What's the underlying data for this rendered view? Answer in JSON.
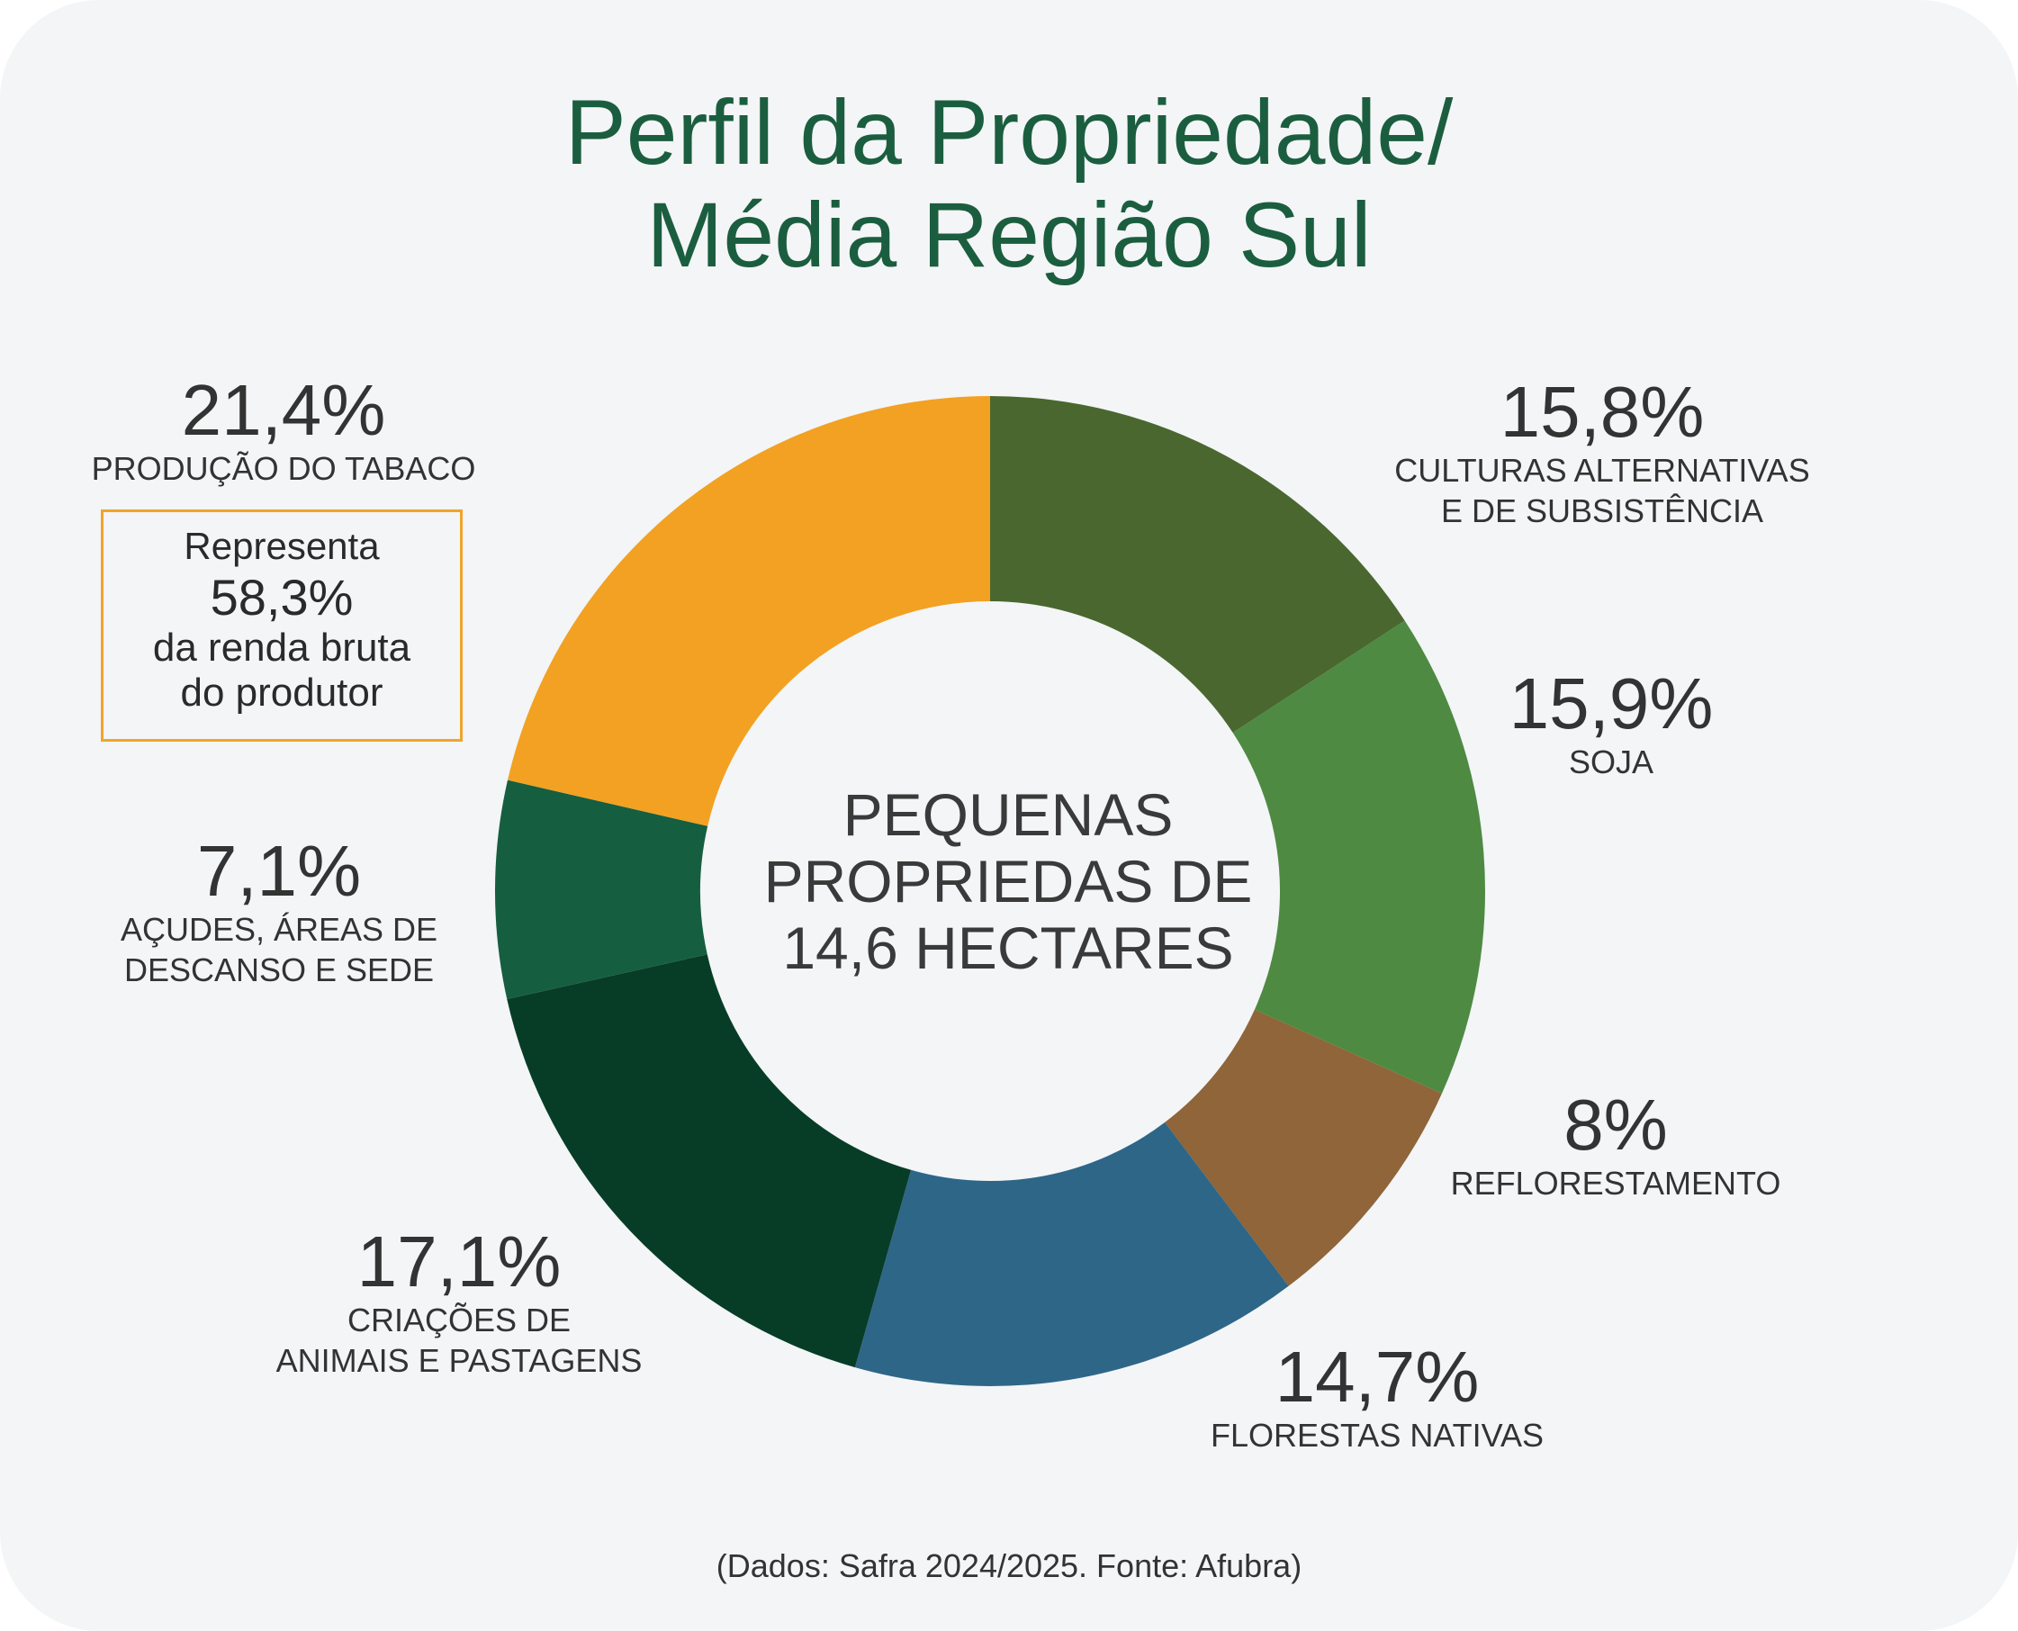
{
  "title": {
    "line1": "Perfil da Propriedade/",
    "line2": "Média Região Sul"
  },
  "center": {
    "line1": "PEQUENAS",
    "line2": "PROPRIEDAS DE",
    "line3": "14,6 HECTARES"
  },
  "callout": {
    "line1": "Representa",
    "line2": "58,3%",
    "line3": "da renda bruta",
    "line4": "do produtor",
    "border_color": "#f0a52a"
  },
  "source": "(Dados: Safra 2024/2025. Fonte: Afubra)",
  "colors": {
    "background": "#f3f5f7",
    "title": "#1b5e3f"
  },
  "chart_data": {
    "type": "pie",
    "variant": "donut",
    "title": "Perfil da Propriedade/ Média Região Sul",
    "slices": [
      {
        "label_lines": [
          "CULTURAS ALTERNATIVAS",
          "E DE SUBSISTÊNCIA"
        ],
        "value": 15.8,
        "value_label": "15,8%",
        "color": "#4a672f"
      },
      {
        "label_lines": [
          "SOJA"
        ],
        "value": 15.9,
        "value_label": "15,9%",
        "color": "#4e8a42"
      },
      {
        "label_lines": [
          "REFLORESTAMENTO"
        ],
        "value": 8,
        "value_label": "8%",
        "color": "#8f6539"
      },
      {
        "label_lines": [
          "FLORESTAS NATIVAS"
        ],
        "value": 14.7,
        "value_label": "14,7%",
        "color": "#2e6688"
      },
      {
        "label_lines": [
          "CRIAÇÕES DE",
          "ANIMAIS E PASTAGENS"
        ],
        "value": 17.1,
        "value_label": "17,1%",
        "color": "#073d27"
      },
      {
        "label_lines": [
          "AÇUDES, ÁREAS DE",
          "DESCANSO E SEDE"
        ],
        "value": 7.1,
        "value_label": "7,1%",
        "color": "#165e40"
      },
      {
        "label_lines": [
          "PRODUÇÃO DO TABACO"
        ],
        "value": 21.4,
        "value_label": "21,4%",
        "color": "#f2a122"
      }
    ]
  }
}
